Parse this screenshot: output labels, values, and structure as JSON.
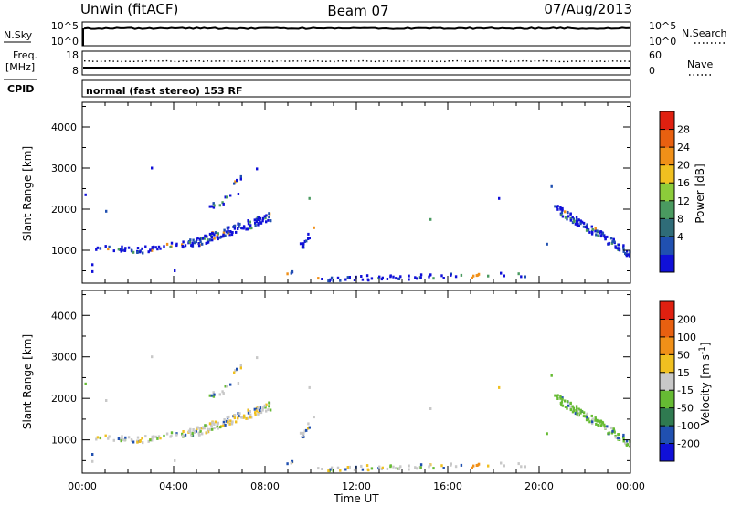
{
  "header": {
    "radar": "Unwin (fitACF)",
    "beam": "Beam 07",
    "date": "07/Aug/2013"
  },
  "top_panels": {
    "nsky_label": "N.Sky",
    "nsearch_label": "N.Search",
    "nsky_ticks": [
      "10^5",
      "10^0"
    ],
    "nsearch_ticks": [
      "10^5",
      "10^0"
    ],
    "freq_label": "Freq.",
    "freq_unit": "[MHz]",
    "freq_ticks": [
      "18",
      "8"
    ],
    "nave_label": "Nave",
    "nave_ticks": [
      "60",
      "0"
    ],
    "cpid_label": "CPID",
    "cpid_text": "normal (fast stereo) 153 RF"
  },
  "chart_data": [
    {
      "type": "scatter",
      "name": "power-panel",
      "ylabel": "Slant Range [km]",
      "y_ticks": [
        "1000",
        "2000",
        "3000",
        "4000"
      ],
      "ylim": [
        200,
        4600
      ],
      "xlim": [
        0,
        24
      ],
      "colorbar_label": "Power [dB]",
      "colorbar_ticks": [
        "28",
        "24",
        "20",
        "16",
        "12",
        "8",
        "4"
      ],
      "colorbar_colors": [
        "#1010d8",
        "#2050b0",
        "#2f6c78",
        "#4a9a60",
        "#8ccc3a",
        "#f0c020",
        "#f09018",
        "#e86010",
        "#e02010"
      ]
    },
    {
      "type": "scatter",
      "name": "velocity-panel",
      "ylabel": "Slant Range [km]",
      "y_ticks": [
        "1000",
        "2000",
        "3000",
        "4000"
      ],
      "ylim": [
        200,
        4600
      ],
      "xlim": [
        0,
        24
      ],
      "colorbar_label": "Velocity [m s",
      "colorbar_unit_sup": "-1",
      "colorbar_unit_close": "]",
      "colorbar_ticks": [
        "200",
        "100",
        "50",
        "15",
        "-15",
        "-50",
        "-100",
        "-200"
      ],
      "colorbar_colors": [
        "#1010d8",
        "#2050b0",
        "#2f7a50",
        "#66bb33",
        "#c8c8c8",
        "#f0c020",
        "#f09018",
        "#e86010",
        "#e02010"
      ]
    }
  ],
  "x_axis": {
    "label": "Time UT",
    "ticks": [
      "00:00",
      "04:00",
      "08:00",
      "12:00",
      "16:00",
      "20:00",
      "00:00"
    ]
  }
}
